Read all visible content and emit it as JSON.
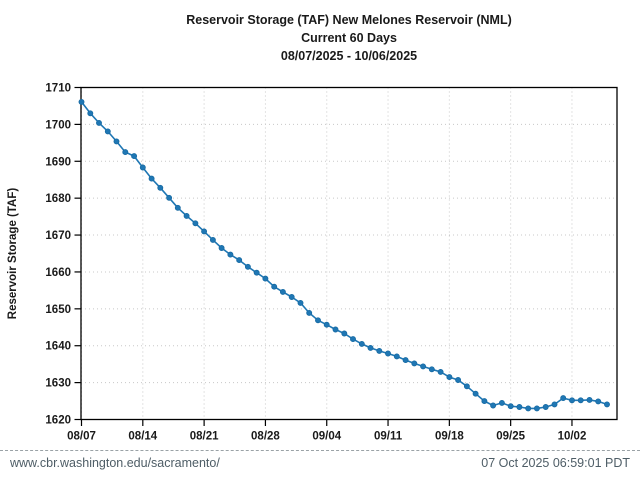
{
  "colors": {
    "line": "#1f77b4",
    "grid": "#c8c8c8",
    "axis": "#000000",
    "tick_label": "#1a1a1a",
    "footer_text": "#4e5d66"
  },
  "footer": {
    "url": "www.cbr.washington.edu/sacramento/",
    "timestamp": "07 Oct 2025 06:59:01 PDT"
  },
  "chart_data": {
    "type": "line",
    "title_lines": [
      "Reservoir Storage (TAF) New Melones Reservoir (NML)",
      "Current 60 Days",
      "08/07/2025 - 10/06/2025"
    ],
    "ylabel": "Reservoir Storage (TAF)",
    "xlabel": "",
    "ylim": [
      1620,
      1710
    ],
    "ytick_step": 10,
    "grid": "dotted",
    "legend_position": "none",
    "marker": "circle",
    "xtick_labels": [
      "08/07",
      "08/14",
      "08/21",
      "08/28",
      "09/04",
      "09/11",
      "09/18",
      "09/25",
      "10/02"
    ],
    "xtick_indices": [
      0,
      7,
      14,
      21,
      28,
      35,
      42,
      49,
      56
    ],
    "series": [
      {
        "name": "Reservoir Storage (TAF)",
        "dates": [
          "08/07",
          "08/08",
          "08/09",
          "08/10",
          "08/11",
          "08/12",
          "08/13",
          "08/14",
          "08/15",
          "08/16",
          "08/17",
          "08/18",
          "08/19",
          "08/20",
          "08/21",
          "08/22",
          "08/23",
          "08/24",
          "08/25",
          "08/26",
          "08/27",
          "08/28",
          "08/29",
          "08/30",
          "08/31",
          "09/01",
          "09/02",
          "09/03",
          "09/04",
          "09/05",
          "09/06",
          "09/07",
          "09/08",
          "09/09",
          "09/10",
          "09/11",
          "09/12",
          "09/13",
          "09/14",
          "09/15",
          "09/16",
          "09/17",
          "09/18",
          "09/19",
          "09/20",
          "09/21",
          "09/22",
          "09/23",
          "09/24",
          "09/25",
          "09/26",
          "09/27",
          "09/28",
          "09/29",
          "09/30",
          "10/01",
          "10/02",
          "10/03",
          "10/04",
          "10/05",
          "10/06"
        ],
        "values": [
          1706.1,
          1703.0,
          1700.4,
          1698.1,
          1695.4,
          1692.5,
          1691.4,
          1688.3,
          1685.3,
          1682.8,
          1680.1,
          1677.4,
          1675.2,
          1673.2,
          1671.0,
          1668.7,
          1666.5,
          1664.7,
          1663.2,
          1661.4,
          1659.8,
          1658.2,
          1656.0,
          1654.6,
          1653.2,
          1651.6,
          1648.9,
          1646.9,
          1645.7,
          1644.4,
          1643.3,
          1641.8,
          1640.5,
          1639.4,
          1638.6,
          1637.9,
          1637.1,
          1636.1,
          1635.2,
          1634.4,
          1633.6,
          1632.9,
          1631.5,
          1630.7,
          1629.0,
          1627.0,
          1625.0,
          1623.8,
          1624.5,
          1623.6,
          1623.4,
          1623.0,
          1623.0,
          1623.4,
          1624.1,
          1625.8,
          1625.2,
          1625.2,
          1625.3,
          1624.9,
          1624.1
        ]
      }
    ]
  }
}
